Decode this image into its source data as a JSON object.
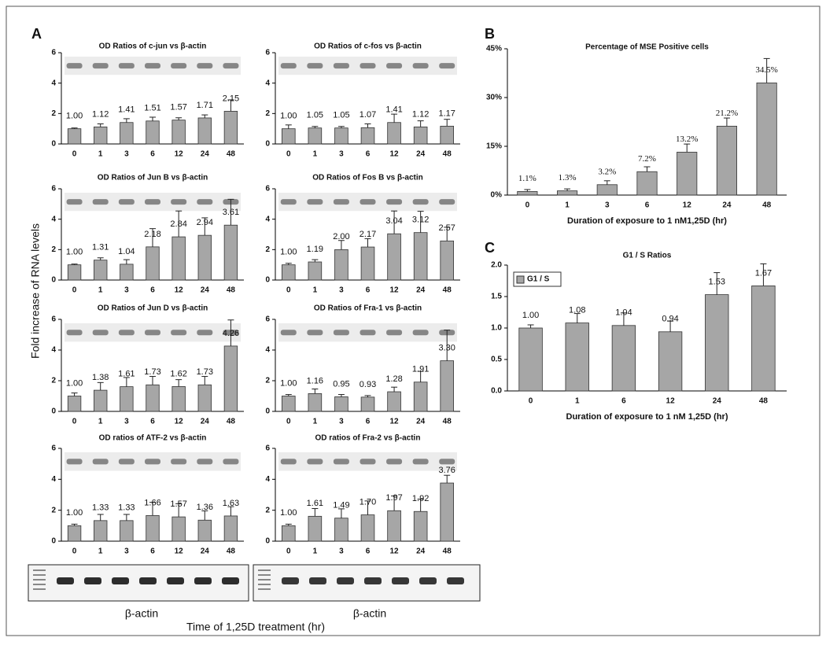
{
  "panel_labels": [
    "A",
    "B",
    "C"
  ],
  "shared_y_label": "Fold increase of RNA levels",
  "shared_x_label": "Time of 1,25D treatment (hr)",
  "gel_labels": [
    "β-actin",
    "β-actin"
  ],
  "chart_data": [
    {
      "type": "bar",
      "title": "OD Ratios of c-jun vs β-actin",
      "blot_inset": true,
      "color": "#a6a6a6",
      "categories": [
        "0",
        "1",
        "3",
        "6",
        "12",
        "24",
        "48"
      ],
      "values": [
        1.0,
        1.12,
        1.41,
        1.51,
        1.57,
        1.71,
        2.15
      ],
      "value_labels": [
        "1.00",
        "1.12",
        "1.41",
        "1.51",
        "1.57",
        "1.71",
        "2.15"
      ],
      "errors": [
        0.05,
        0.2,
        0.25,
        0.25,
        0.15,
        0.2,
        0.75
      ],
      "ylim": [
        0,
        6
      ],
      "yticks": [
        0,
        2,
        4,
        6
      ]
    },
    {
      "type": "bar",
      "title": "OD Ratios of c-fos vs β-actin",
      "blot_inset": true,
      "color": "#a6a6a6",
      "categories": [
        "0",
        "1",
        "3",
        "6",
        "12",
        "24",
        "48"
      ],
      "values": [
        1.0,
        1.05,
        1.05,
        1.07,
        1.41,
        1.12,
        1.17
      ],
      "value_labels": [
        "1.00",
        "1.05",
        "1.05",
        "1.07",
        "1.41",
        "1.12",
        "1.17"
      ],
      "errors": [
        0.25,
        0.1,
        0.1,
        0.25,
        0.55,
        0.4,
        0.45
      ],
      "ylim": [
        0,
        6
      ],
      "yticks": [
        0,
        2,
        4,
        6
      ]
    },
    {
      "type": "bar",
      "title": "OD Ratios of Jun B vs β-actin",
      "blot_inset": true,
      "color": "#a6a6a6",
      "categories": [
        "0",
        "1",
        "3",
        "6",
        "12",
        "24",
        "48"
      ],
      "values": [
        1.0,
        1.31,
        1.04,
        2.18,
        2.84,
        2.94,
        3.61
      ],
      "value_labels": [
        "1.00",
        "1.31",
        "1.04",
        "2.18",
        "2.84",
        "2.94",
        "3.61"
      ],
      "errors": [
        0.05,
        0.15,
        0.3,
        1.2,
        1.7,
        1.15,
        1.7
      ],
      "ylim": [
        0,
        6
      ],
      "yticks": [
        0,
        2,
        4,
        6
      ]
    },
    {
      "type": "bar",
      "title": "OD Ratios of Fos B vs β-actin",
      "blot_inset": true,
      "color": "#a6a6a6",
      "categories": [
        "0",
        "1",
        "3",
        "6",
        "12",
        "24",
        "48"
      ],
      "values": [
        1.0,
        1.19,
        2.0,
        2.17,
        3.04,
        3.12,
        2.57
      ],
      "value_labels": [
        "1.00",
        "1.19",
        "2.00",
        "2.17",
        "3.04",
        "3.12",
        "2.57"
      ],
      "errors": [
        0.1,
        0.15,
        0.6,
        0.55,
        1.5,
        1.4,
        0.9
      ],
      "ylim": [
        0,
        6
      ],
      "yticks": [
        0,
        2,
        4,
        6
      ]
    },
    {
      "type": "bar",
      "title": "OD Ratios of Jun D vs β-actin",
      "blot_inset": true,
      "color": "#a6a6a6",
      "categories": [
        "0",
        "1",
        "3",
        "6",
        "12",
        "24",
        "48"
      ],
      "values": [
        1.0,
        1.38,
        1.61,
        1.73,
        1.62,
        1.73,
        4.26
      ],
      "value_labels": [
        "1.00",
        "1.38",
        "1.61",
        "1.73",
        "1.62",
        "1.73",
        "4.26"
      ],
      "errors": [
        0.2,
        0.5,
        0.6,
        0.55,
        0.45,
        0.55,
        1.7
      ],
      "ylim": [
        0,
        6
      ],
      "yticks": [
        0,
        2,
        4,
        6
      ]
    },
    {
      "type": "bar",
      "title": "OD Ratios of Fra-1 vs β-actin",
      "blot_inset": true,
      "color": "#a6a6a6",
      "categories": [
        "0",
        "1",
        "3",
        "6",
        "12",
        "24",
        "48"
      ],
      "values": [
        1.0,
        1.16,
        0.95,
        0.93,
        1.28,
        1.91,
        3.3
      ],
      "value_labels": [
        "1.00",
        "1.16",
        "0.95",
        "0.93",
        "1.28",
        "1.91",
        "3.30"
      ],
      "errors": [
        0.1,
        0.3,
        0.15,
        0.1,
        0.3,
        0.7,
        2.0
      ],
      "ylim": [
        0,
        6
      ],
      "yticks": [
        0,
        2,
        4,
        6
      ]
    },
    {
      "type": "bar",
      "title": "OD ratios of ATF-2 vs β-actin",
      "blot_inset": true,
      "color": "#a6a6a6",
      "categories": [
        "0",
        "1",
        "3",
        "6",
        "12",
        "24",
        "48"
      ],
      "values": [
        1.0,
        1.33,
        1.33,
        1.66,
        1.57,
        1.36,
        1.63
      ],
      "value_labels": [
        "1.00",
        "1.33",
        "1.33",
        "1.66",
        "1.57",
        "1.36",
        "1.63"
      ],
      "errors": [
        0.1,
        0.4,
        0.4,
        0.85,
        0.85,
        0.6,
        0.6
      ],
      "ylim": [
        0,
        6
      ],
      "yticks": [
        0,
        2,
        4,
        6
      ]
    },
    {
      "type": "bar",
      "title": "OD ratios of Fra-2 vs β-actin",
      "blot_inset": true,
      "color": "#a6a6a6",
      "categories": [
        "0",
        "1",
        "3",
        "6",
        "12",
        "24",
        "48"
      ],
      "values": [
        1.0,
        1.61,
        1.49,
        1.7,
        1.97,
        1.92,
        3.76
      ],
      "value_labels": [
        "1.00",
        "1.61",
        "1.49",
        "1.70",
        "1.97",
        "1.92",
        "3.76"
      ],
      "errors": [
        0.1,
        0.5,
        0.6,
        0.9,
        0.95,
        0.8,
        0.5
      ],
      "ylim": [
        0,
        6
      ],
      "yticks": [
        0,
        2,
        4,
        6
      ]
    },
    {
      "type": "bar",
      "title": "Percentage of MSE Positive cells",
      "color": "#a6a6a6",
      "serif_labels": true,
      "xlabel": "Duration of exposure to 1 nM1,25D (hr)",
      "categories": [
        "0",
        "1",
        "3",
        "6",
        "12",
        "24",
        "48"
      ],
      "values": [
        1.1,
        1.3,
        3.2,
        7.2,
        13.2,
        21.2,
        34.5
      ],
      "value_labels": [
        "1.1%",
        "1.3%",
        "3.2%",
        "7.2%",
        "13.2%",
        "21.2%",
        "34.5%"
      ],
      "errors": [
        0.6,
        0.6,
        1.2,
        1.5,
        2.5,
        2.5,
        7.5
      ],
      "ylim": [
        0,
        45
      ],
      "yticks": [
        {
          "value": 0,
          "label": "0%"
        },
        {
          "value": 15,
          "label": "15%"
        },
        {
          "value": 30,
          "label": "30%"
        },
        {
          "value": 45,
          "label": "45%"
        }
      ]
    },
    {
      "type": "bar",
      "title": "G1 / S Ratios",
      "legend": "upper left",
      "xlabel": "Duration of exposure to 1 nM 1,25D (hr)",
      "categories": [
        "0",
        "1",
        "6",
        "12",
        "24",
        "48"
      ],
      "series": [
        {
          "name": "G1 / S",
          "color": "#a6a6a6",
          "values": [
            1.0,
            1.08,
            1.04,
            0.94,
            1.53,
            1.67
          ],
          "value_labels": [
            "1.00",
            "1.08",
            "1.04",
            "0.94",
            "1.53",
            "1.67"
          ],
          "errors": [
            0.05,
            0.15,
            0.2,
            0.17,
            0.35,
            0.35
          ]
        }
      ],
      "ylim": [
        0,
        2
      ],
      "yticks": [
        {
          "value": 0,
          "label": "0.0"
        },
        {
          "value": 0.5,
          "label": "0.5"
        },
        {
          "value": 1,
          "label": "1.0"
        },
        {
          "value": 1.5,
          "label": "1.5"
        },
        {
          "value": 2,
          "label": "2.0"
        }
      ]
    }
  ]
}
